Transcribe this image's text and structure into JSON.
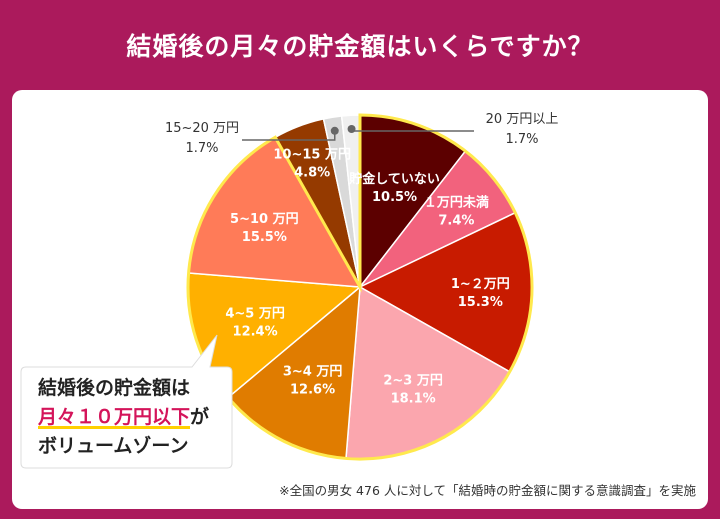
{
  "header": {
    "title": "結婚後の月々の貯金額はいくらですか？"
  },
  "chart_data": {
    "type": "pie",
    "title": "結婚後の月々の貯金額はいくらですか？",
    "start": "12 o'clock, clockwise",
    "slices": [
      {
        "label": "貯金していない",
        "value": 10.5,
        "pct": "10.5%",
        "color": "#5c0000",
        "text_color": "#ffffff"
      },
      {
        "label": "１万円未満",
        "value": 7.4,
        "pct": "7.4%",
        "color": "#f2627d",
        "text_color": "#ffffff"
      },
      {
        "label": "1~２万円",
        "value": 15.3,
        "pct": "15.3%",
        "color": "#c81b00",
        "text_color": "#ffffff"
      },
      {
        "label": "2~3 万円",
        "value": 18.1,
        "pct": "18.1%",
        "color": "#fba6ae",
        "text_color": "#ffffff"
      },
      {
        "label": "3~4 万円",
        "value": 12.6,
        "pct": "12.6%",
        "color": "#e07c00",
        "text_color": "#ffffff"
      },
      {
        "label": "4~5 万円",
        "value": 12.4,
        "pct": "12.4%",
        "color": "#ffb000",
        "text_color": "#ffffff"
      },
      {
        "label": "5~10 万円",
        "value": 15.5,
        "pct": "15.5%",
        "color": "#ff7b58",
        "text_color": "#ffffff"
      },
      {
        "label": "10~15 万円",
        "value": 4.8,
        "pct": "4.8%",
        "color": "#953a00",
        "text_color": "#ffffff"
      },
      {
        "label": "15~20 万円",
        "value": 1.7,
        "pct": "1.7%",
        "color": "#d9d9d9",
        "text_color": "#333333"
      },
      {
        "label": "20 万円以上",
        "value": 1.7,
        "pct": "1.7%",
        "color": "#f0f0f0",
        "text_color": "#333333"
      }
    ],
    "highlight_slices": [
      "4~5 万円",
      "5~10 万円",
      "3~4 万円",
      "1~２万円",
      "2~3 万円",
      "１万円未満",
      "貯金していない"
    ]
  },
  "callout": {
    "line1": "結婚後の貯金額は",
    "line2_highlight": "月々１０万円以下",
    "line2_suffix": "が",
    "line3": "ボリュームゾーン"
  },
  "footnote": "※全国の男女 476 人に対して「結婚時の貯金額に関する意識調査」を実施",
  "colors": {
    "background": "#ab1a5c",
    "highlight_border": "#ffe94d",
    "callout_text_highlight": "#d4145a",
    "underline": "#ffd000"
  }
}
